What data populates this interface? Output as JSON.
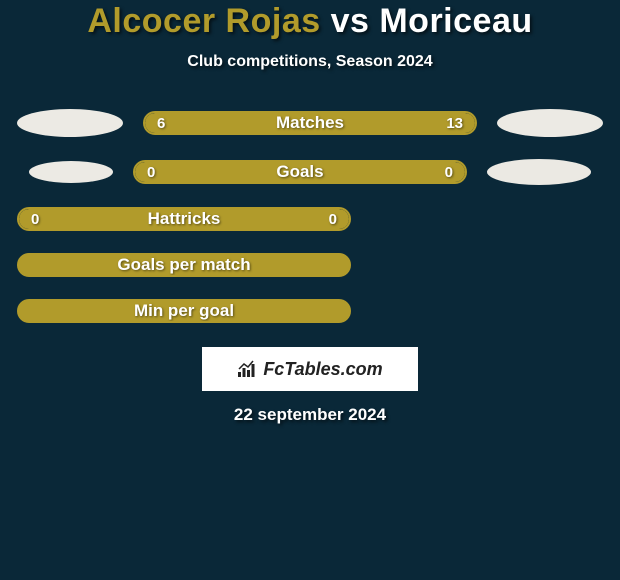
{
  "background_color": "#0a2838",
  "title": {
    "player1": "Alcocer Rojas",
    "vs": " vs ",
    "player2": "Moriceau",
    "player1_color": "#b19b2b",
    "player2_color": "#ffffff",
    "vs_color": "#ffffff"
  },
  "subtitle": "Club competitions, Season 2024",
  "bars": [
    {
      "label": "Matches",
      "left_value": "6",
      "right_value": "13",
      "left_pct": 31.6,
      "right_pct": 68.4,
      "show_ellipses": true,
      "left_ellipse_color": "#eceae4",
      "right_ellipse_color": "#eceae4",
      "left_ellipse_w": 106,
      "left_ellipse_h": 28,
      "right_ellipse_w": 106,
      "right_ellipse_h": 28
    },
    {
      "label": "Goals",
      "left_value": "0",
      "right_value": "0",
      "left_pct": 50,
      "right_pct": 50,
      "show_ellipses": true,
      "left_ellipse_color": "#eceae4",
      "right_ellipse_color": "#ebe9e3",
      "left_ellipse_w": 84,
      "left_ellipse_h": 22,
      "right_ellipse_w": 104,
      "right_ellipse_h": 26
    },
    {
      "label": "Hattricks",
      "left_value": "0",
      "right_value": "0",
      "left_pct": 50,
      "right_pct": 50,
      "show_ellipses": false
    }
  ],
  "empty_bars": [
    {
      "label": "Goals per match"
    },
    {
      "label": "Min per goal"
    }
  ],
  "bar_style": {
    "left_fill": "#b19b2b",
    "right_fill": "#b19b2b",
    "track": "#0a2838",
    "border": "#b19b2b",
    "height": 24,
    "radius": 12
  },
  "logo": {
    "text": "FcTables.com"
  },
  "date": "22 september 2024"
}
